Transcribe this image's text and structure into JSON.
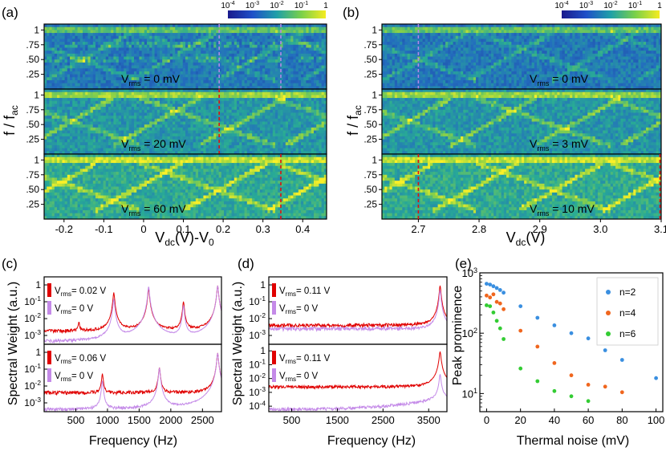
{
  "chart_data": [
    {
      "id": "a",
      "panel_label": "(a)",
      "type": "heatmap",
      "title": "",
      "xlabel": "V_dc(V)-V_0",
      "ylabel": "f / f_ac",
      "xlim": [
        -0.25,
        0.46
      ],
      "x_ticks": [
        -0.2,
        -0.1,
        0,
        0.1,
        0.2,
        0.3,
        0.4
      ],
      "x_tick_labels": [
        "-0.2",
        "-0.1",
        "0",
        "0.1",
        "0.2",
        "0.3",
        "0.4"
      ],
      "y_ticks": [
        1,
        0.75,
        0.5,
        0.25
      ],
      "y_tick_labels": [
        "1",
        ".75",
        ".50",
        ".25"
      ],
      "colorbar": {
        "scale": "log",
        "min": 0.0001,
        "max": 1,
        "tick_labels": [
          "10-4",
          "10-3",
          "10-2",
          "10-1",
          "1"
        ]
      },
      "subplots": [
        {
          "annotation": "Vrms = 0 mV",
          "vrms_value": "0",
          "vrms_unit": "mV",
          "marker_x": 0.19,
          "marker_color": "#b28ae6",
          "marker_x2": 0.345,
          "marker2_color": "#b28ae6"
        },
        {
          "annotation": "Vrms = 20 mV",
          "vrms_value": "20",
          "vrms_unit": "mV",
          "marker_x": 0.19,
          "marker_color": "#dd1111"
        },
        {
          "annotation": "Vrms = 60 mV",
          "vrms_value": "60",
          "vrms_unit": "mV",
          "marker_x": 0.345,
          "marker_color": "#dd1111"
        }
      ]
    },
    {
      "id": "b",
      "panel_label": "(b)",
      "type": "heatmap",
      "title": "",
      "xlabel": "V_dc(V)",
      "ylabel": "f / f_ac",
      "xlim": [
        2.64,
        3.1
      ],
      "x_ticks": [
        2.7,
        2.8,
        2.9,
        3.0,
        3.1
      ],
      "x_tick_labels": [
        "2.7",
        "2.8",
        "2.9",
        "3.0",
        "3.1"
      ],
      "y_ticks": [
        1,
        0.75,
        0.5,
        0.25
      ],
      "y_tick_labels": [
        "1",
        ".75",
        ".50",
        ".25"
      ],
      "colorbar": {
        "scale": "log",
        "min": 0.0001,
        "max": 1,
        "tick_labels": [
          "10-4",
          "10-3",
          "10-2",
          "10-1",
          "1"
        ]
      },
      "subplots": [
        {
          "annotation": "Vrms = 0 mV",
          "vrms_value": "0",
          "vrms_unit": "mV",
          "marker_x": 2.7,
          "marker_color": "#b28ae6"
        },
        {
          "annotation": "Vrms = 3 mV",
          "vrms_value": "3",
          "vrms_unit": "mV"
        },
        {
          "annotation": "Vrms = 10 mV",
          "vrms_value": "10",
          "vrms_unit": "mV",
          "marker_x": 2.7,
          "marker_color": "#dd1111",
          "marker_x2": 3.098,
          "marker2_color": "#dd1111"
        }
      ]
    },
    {
      "id": "c",
      "panel_label": "(c)",
      "type": "line",
      "title": "",
      "xlabel": "Frequency (Hz)",
      "ylabel": "Spectral Weight (a.u.)",
      "xlim": [
        0,
        2800
      ],
      "x_ticks": [
        500,
        1000,
        1500,
        2000,
        2500
      ],
      "x_tick_labels": [
        "500",
        "1000",
        "1500",
        "2000",
        "2500"
      ],
      "ylim_log": [
        0.0003,
        3
      ],
      "y_ticks": [
        1,
        0.1,
        0.01,
        0.001
      ],
      "y_tick_labels": [
        "1",
        "10-1",
        "10-2",
        "10-3"
      ],
      "subplots": [
        {
          "legend": [
            {
              "label": "Vrms = 0.02 V",
              "value": "0.02",
              "unit": "V",
              "color": "#e00000"
            },
            {
              "label": "Vrms = 0 V",
              "value": "0",
              "unit": "V",
              "color": "#c48ae8"
            }
          ],
          "series": [
            {
              "name": "Vrms = 0.02 V",
              "color": "#e00000",
              "baseline": 0.0018,
              "peaks": [
                [
                  550,
                  0.004
                ],
                [
                  1100,
                  0.35
                ],
                [
                  1650,
                  0.6
                ],
                [
                  2200,
                  0.1
                ],
                [
                  2740,
                  0.9
                ]
              ]
            },
            {
              "name": "Vrms = 0 V",
              "color": "#c48ae8",
              "baseline": 0.0004,
              "peaks": [
                [
                  1100,
                  0.15
                ],
                [
                  1650,
                  0.8
                ],
                [
                  2200,
                  0.06
                ],
                [
                  2740,
                  0.9
                ]
              ]
            }
          ]
        },
        {
          "legend": [
            {
              "label": "Vrms = 0.06 V",
              "value": "0.06",
              "unit": "V",
              "color": "#e00000"
            },
            {
              "label": "Vrms = 0 V",
              "value": "0",
              "unit": "V",
              "color": "#c48ae8"
            }
          ],
          "series": [
            {
              "name": "Vrms = 0.06 V",
              "color": "#e00000",
              "baseline": 0.004,
              "peaks": [
                [
                  920,
                  0.05
                ],
                [
                  1820,
                  0.12
                ],
                [
                  2740,
                  0.9
                ]
              ]
            },
            {
              "name": "Vrms = 0 V",
              "color": "#c48ae8",
              "baseline": 0.0004,
              "peaks": [
                [
                  920,
                  0.02
                ],
                [
                  1820,
                  0.12
                ],
                [
                  2740,
                  0.9
                ]
              ]
            }
          ]
        }
      ]
    },
    {
      "id": "d",
      "panel_label": "(d)",
      "type": "line",
      "title": "",
      "xlabel": "Frequency (Hz)",
      "ylabel": "Spectral Weight (a.u.)",
      "xlim": [
        0,
        3900
      ],
      "x_ticks": [
        500,
        1500,
        2500,
        3500
      ],
      "x_tick_labels": [
        "500",
        "1500",
        "2500",
        "3500"
      ],
      "ylim_log": [
        0.0003,
        3
      ],
      "ylim_log_lower": [
        4e-05,
        3
      ],
      "y_ticks": [
        1,
        0.1,
        0.01,
        0.001
      ],
      "y_tick_labels": [
        "1",
        "10-1",
        "10-2",
        "10-3"
      ],
      "y_ticks_lower": [
        1,
        0.1,
        0.01,
        0.001,
        0.0001
      ],
      "y_tick_labels_lower": [
        "1",
        "10-1",
        "10-2",
        "10-3",
        "10-4"
      ],
      "subplots": [
        {
          "legend": [
            {
              "label": "Vrms = 0.11 V",
              "value": "0.11",
              "unit": "V",
              "color": "#e00000"
            },
            {
              "label": "Vrms = 0 V",
              "value": "0",
              "unit": "V",
              "color": "#c48ae8"
            }
          ],
          "series": [
            {
              "name": "Vrms = 0.11 V",
              "color": "#e00000",
              "baseline": 0.004,
              "peaks": [
                [
                  3750,
                  0.9
                ]
              ]
            },
            {
              "name": "Vrms = 0 V",
              "color": "#c48ae8",
              "baseline": 0.0025,
              "peaks": [
                [
                  3750,
                  0.5
                ]
              ]
            }
          ]
        },
        {
          "legend": [
            {
              "label": "Vrms = 0.11 V",
              "value": "0.11",
              "unit": "V",
              "color": "#e00000"
            },
            {
              "label": "Vrms = 0 V",
              "value": "0",
              "unit": "V",
              "color": "#c48ae8"
            }
          ],
          "series": [
            {
              "name": "Vrms = 0.11 V",
              "color": "#e00000",
              "baseline": 0.0025,
              "peaks": [
                [
                  3750,
                  0.9
                ]
              ]
            },
            {
              "name": "Vrms = 0 V",
              "color": "#c48ae8",
              "baseline": 6e-05,
              "rise_to": 0.0004,
              "peaks": [
                [
                  3750,
                  0.02
                ]
              ]
            }
          ]
        }
      ]
    },
    {
      "id": "e",
      "panel_label": "(e)",
      "type": "scatter",
      "title": "",
      "xlabel": "Thermal noise (mV)",
      "ylabel": "Peak prominence",
      "xlim": [
        -4,
        104
      ],
      "ylim_log": [
        5,
        1000
      ],
      "x_ticks": [
        0,
        20,
        40,
        60,
        80,
        100
      ],
      "x_tick_labels": [
        "0",
        "20",
        "40",
        "60",
        "80",
        "100"
      ],
      "y_ticks": [
        1000,
        100,
        10
      ],
      "y_tick_labels": [
        "10^3",
        "10^2",
        "10^1"
      ],
      "legend_position": "top-right",
      "series": [
        {
          "name": "n=2",
          "color": "#3a8fe0",
          "x": [
            0,
            2,
            4,
            6,
            8,
            10,
            20,
            30,
            40,
            50,
            60,
            70,
            80,
            100
          ],
          "y": [
            660,
            640,
            600,
            560,
            520,
            470,
            280,
            180,
            135,
            100,
            82,
            52,
            36,
            18
          ]
        },
        {
          "name": "n=4",
          "color": "#f0661e",
          "x": [
            0,
            2,
            4,
            6,
            8,
            10,
            20,
            30,
            40,
            50,
            60,
            70,
            80
          ],
          "y": [
            420,
            390,
            440,
            330,
            310,
            250,
            110,
            60,
            32,
            20,
            14,
            13,
            10.5
          ]
        },
        {
          "name": "n=6",
          "color": "#33cc33",
          "x": [
            0,
            2,
            4,
            6,
            8,
            10,
            20,
            30,
            40,
            50,
            60
          ],
          "y": [
            290,
            280,
            220,
            160,
            120,
            80,
            26,
            16,
            11,
            9,
            7.5
          ]
        }
      ]
    }
  ]
}
